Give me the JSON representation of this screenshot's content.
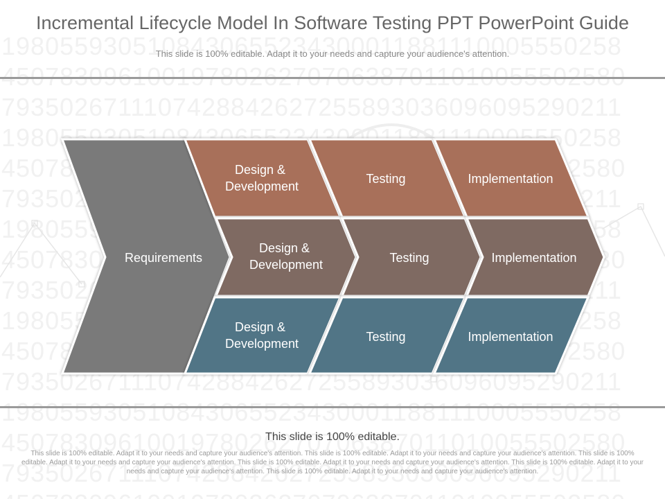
{
  "title": "Incremental Lifecycle Model In Software Testing PPT PowerPoint Guide",
  "subtitle": "This slide is 100% editable. Adapt it to your needs and capture your audience's attention.",
  "diagram": {
    "requirements_label": "Requirements",
    "rows": [
      {
        "color": "#a86f5a",
        "design_line1": "Design &",
        "design_line2": "Development",
        "testing": "Testing",
        "implementation": "Implementation"
      },
      {
        "color": "#7f6a62",
        "design_line1": "Design &",
        "design_line2": "Development",
        "testing": "Testing",
        "implementation": "Implementation"
      },
      {
        "color": "#517486",
        "design_line1": "Design &",
        "design_line2": "Development",
        "testing": "Testing",
        "implementation": "Implementation"
      }
    ],
    "requirements_color": "#7a7a7a"
  },
  "footer": {
    "heading": "This slide is 100% editable.",
    "body": "This slide is 100% editable. Adapt it to your needs and capture your audience's attention. This slide is 100% editable. Adapt it to your needs and capture your audience's attention. This slide is 100% editable. Adapt it to your needs and capture your audience's attention. This slide is 100% editable. Adapt it to your needs and capture your audience's attention. This slide is 100% editable. Adapt it to your needs and capture your audience's attention. This slide is 100% editable. Adapt it to your needs and capture your audience's attention."
  },
  "background_digits": [
    "1980559305108430655234300011881110005550258",
    "4507830961001978026270706387011010055502580",
    "7935026711107428842627255893036096095290211",
    "1980559305108430655234300011881110005550258",
    "4507830961001978026270706387011010055502580",
    "7935026711107428842627255893036096095290211",
    "1980559305108430655234300011881110005550258",
    "4507830961001978026270706387011010055502580",
    "7935026711107428842627255893036096095290211",
    "1980559305108430655234300011881110005550258",
    "4507830961001978026270706387011010055502580",
    "7935026711107428842627255893036096095290211",
    "1980559305108430655234300011881110005550258",
    "4507830961001978026270706387011010055502580",
    "7935026711107428842627255893036096095290211",
    "4507830961001978026270706387011010055502580"
  ]
}
